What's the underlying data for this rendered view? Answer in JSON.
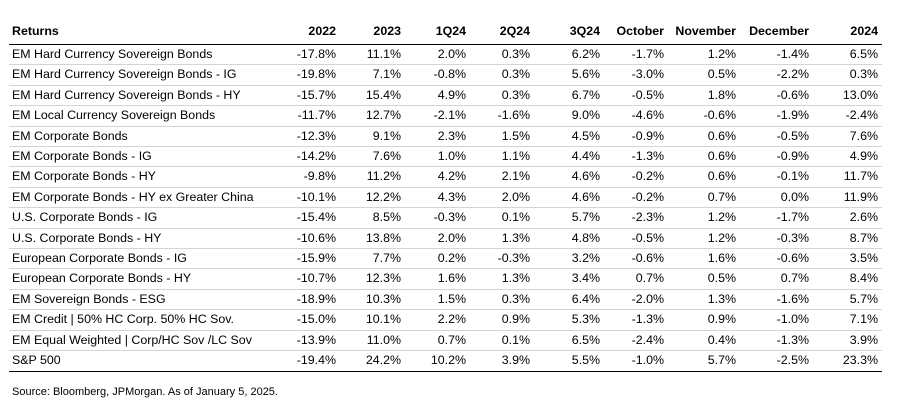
{
  "table": {
    "headers": [
      "Returns",
      "2022",
      "2023",
      "1Q24",
      "2Q24",
      "3Q24",
      "October",
      "November",
      "December",
      "2024"
    ],
    "rows": [
      [
        "EM Hard Currency Sovereign Bonds",
        "-17.8%",
        "11.1%",
        "2.0%",
        "0.3%",
        "6.2%",
        "-1.7%",
        "1.2%",
        "-1.4%",
        "6.5%"
      ],
      [
        "EM Hard Currency Sovereign Bonds - IG",
        "-19.8%",
        "7.1%",
        "-0.8%",
        "0.3%",
        "5.6%",
        "-3.0%",
        "0.5%",
        "-2.2%",
        "0.3%"
      ],
      [
        "EM Hard Currency Sovereign Bonds - HY",
        "-15.7%",
        "15.4%",
        "4.9%",
        "0.3%",
        "6.7%",
        "-0.5%",
        "1.8%",
        "-0.6%",
        "13.0%"
      ],
      [
        "EM Local Currency Sovereign Bonds",
        "-11.7%",
        "12.7%",
        "-2.1%",
        "-1.6%",
        "9.0%",
        "-4.6%",
        "-0.6%",
        "-1.9%",
        "-2.4%"
      ],
      [
        "EM Corporate Bonds",
        "-12.3%",
        "9.1%",
        "2.3%",
        "1.5%",
        "4.5%",
        "-0.9%",
        "0.6%",
        "-0.5%",
        "7.6%"
      ],
      [
        "EM Corporate Bonds - IG",
        "-14.2%",
        "7.6%",
        "1.0%",
        "1.1%",
        "4.4%",
        "-1.3%",
        "0.6%",
        "-0.9%",
        "4.9%"
      ],
      [
        "EM Corporate Bonds - HY",
        "-9.8%",
        "11.2%",
        "4.2%",
        "2.1%",
        "4.6%",
        "-0.2%",
        "0.6%",
        "-0.1%",
        "11.7%"
      ],
      [
        "EM Corporate Bonds - HY ex Greater China",
        "-10.1%",
        "12.2%",
        "4.3%",
        "2.0%",
        "4.6%",
        "-0.2%",
        "0.7%",
        "0.0%",
        "11.9%"
      ],
      [
        "U.S. Corporate Bonds - IG",
        "-15.4%",
        "8.5%",
        "-0.3%",
        "0.1%",
        "5.7%",
        "-2.3%",
        "1.2%",
        "-1.7%",
        "2.6%"
      ],
      [
        "U.S. Corporate Bonds - HY",
        "-10.6%",
        "13.8%",
        "2.0%",
        "1.3%",
        "4.8%",
        "-0.5%",
        "1.2%",
        "-0.3%",
        "8.7%"
      ],
      [
        "European Corporate Bonds - IG",
        "-15.9%",
        "7.7%",
        "0.2%",
        "-0.3%",
        "3.2%",
        "-0.6%",
        "1.6%",
        "-0.6%",
        "3.5%"
      ],
      [
        "European Corporate Bonds - HY",
        "-10.7%",
        "12.3%",
        "1.6%",
        "1.3%",
        "3.4%",
        "0.7%",
        "0.5%",
        "0.7%",
        "8.4%"
      ],
      [
        "EM Sovereign Bonds - ESG",
        "-18.9%",
        "10.3%",
        "1.5%",
        "0.3%",
        "6.4%",
        "-2.0%",
        "1.3%",
        "-1.6%",
        "5.7%"
      ],
      [
        "EM Credit | 50% HC Corp. 50% HC Sov.",
        "-15.0%",
        "10.1%",
        "2.2%",
        "0.9%",
        "5.3%",
        "-1.3%",
        "0.9%",
        "-1.0%",
        "7.1%"
      ],
      [
        "EM Equal Weighted | Corp/HC Sov /LC Sov",
        "-13.9%",
        "11.0%",
        "0.7%",
        "0.1%",
        "6.5%",
        "-2.4%",
        "0.4%",
        "-1.3%",
        "3.9%"
      ],
      [
        "S&P 500",
        "-19.4%",
        "24.2%",
        "10.2%",
        "3.9%",
        "5.5%",
        "-1.0%",
        "5.7%",
        "-2.5%",
        "23.3%"
      ]
    ]
  },
  "footer": {
    "source": "Source: Bloomberg, JPMorgan. As of January 5, 2025."
  },
  "colors": {
    "text": "#000000",
    "rule": "#000000",
    "row_divider": "#d4d4d4",
    "background": "#ffffff"
  }
}
